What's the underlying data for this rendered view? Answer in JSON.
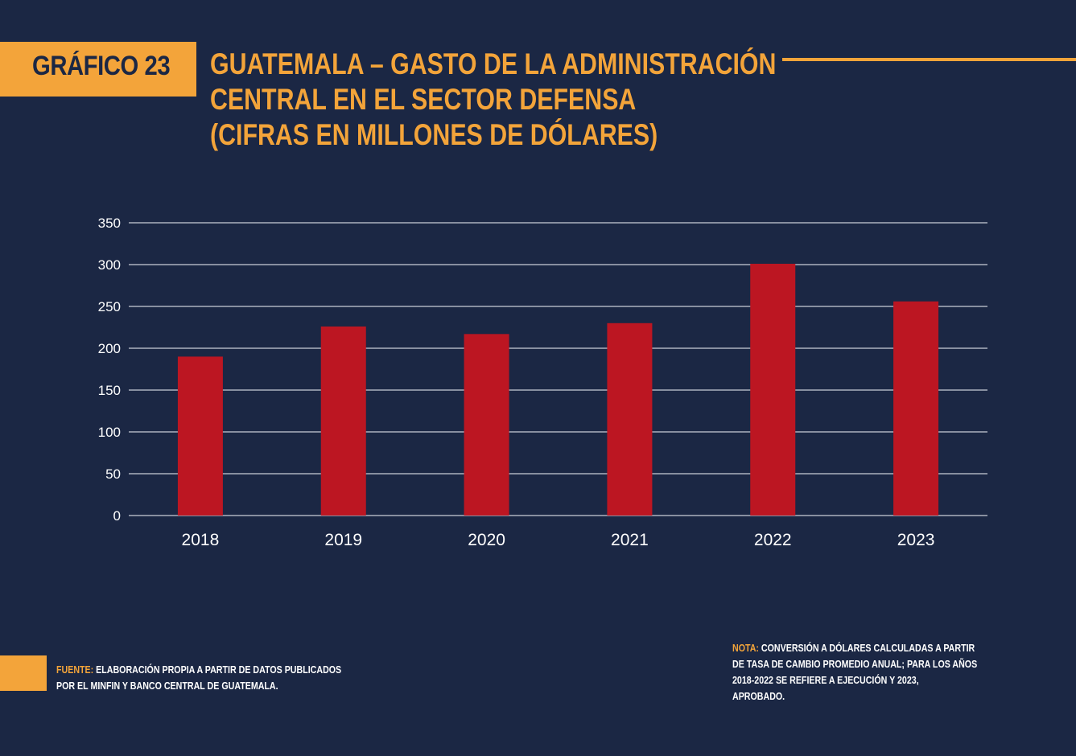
{
  "badge": {
    "label": "GRÁFICO 23"
  },
  "title": {
    "line1": "GUATEMALA – GASTO DE LA ADMINISTRACIÓN",
    "line2": "CENTRAL EN EL SECTOR DEFENSA",
    "line3": "(CIFRAS EN MILLONES DE DÓLARES)"
  },
  "source": {
    "prefix": "FUENTE:",
    "line1": " ELABORACIÓN PROPIA A PARTIR DE DATOS PUBLICADOS",
    "line2": "POR EL MINFIN Y BANCO CENTRAL DE GUATEMALA."
  },
  "note": {
    "prefix": "NOTA:",
    "line1": " CONVERSIÓN A DÓLARES CALCULADAS A PARTIR",
    "line2": "DE TASA DE CAMBIO PROMEDIO ANUAL; PARA LOS AÑOS",
    "line3": "2018-2022 SE REFIERE A EJECUCIÓN Y 2023,",
    "line4": "APROBADO."
  },
  "colors": {
    "background": "#1b2744",
    "accent": "#f3a43a",
    "bar": "#bc1622",
    "grid": "#c9cdd6",
    "text": "#ffffff"
  },
  "chart_data": {
    "type": "bar",
    "categories": [
      "2018",
      "2019",
      "2020",
      "2021",
      "2022",
      "2023"
    ],
    "values": [
      190,
      226,
      217,
      230,
      301,
      256
    ],
    "ylim": [
      0,
      350
    ],
    "yticks": [
      0,
      50,
      100,
      150,
      200,
      250,
      300,
      350
    ],
    "grid": true,
    "legend": "none"
  }
}
